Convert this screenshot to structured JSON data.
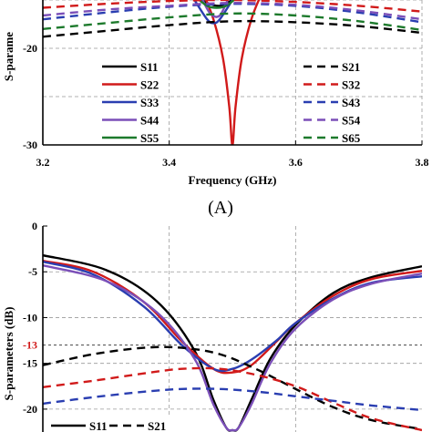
{
  "chart_data": [
    {
      "type": "line",
      "panel_label": "(A)",
      "xlabel": "Frequency (GHz)",
      "ylabel": "S-parame",
      "xlim": [
        3.2,
        3.8
      ],
      "ylim": [
        -30,
        -15
      ],
      "x_ticks": [
        "3.2",
        "3.4",
        "3.6",
        "3.8"
      ],
      "y_ticks": [
        "-20",
        "-30"
      ],
      "grid": true,
      "legend_placement": "bottom",
      "series": [
        {
          "name": "S11",
          "color": "#000000",
          "dash": "solid",
          "x": [
            3.44,
            3.46,
            3.48,
            3.5
          ],
          "y": [
            -14.5,
            -15.3,
            -15.6,
            -15
          ]
        },
        {
          "name": "S22",
          "color": "#d11a1a",
          "dash": "solid",
          "x": [
            3.455,
            3.47,
            3.485,
            3.495,
            3.5,
            3.505,
            3.515,
            3.53,
            3.545
          ],
          "y": [
            -14.5,
            -17,
            -21,
            -26,
            -30,
            -26,
            -21,
            -17,
            -14.5
          ]
        },
        {
          "name": "S33",
          "color": "#2a3eb1",
          "dash": "solid",
          "x": [
            3.44,
            3.46,
            3.47,
            3.48,
            3.5
          ],
          "y": [
            -15,
            -17,
            -17.4,
            -17,
            -15
          ]
        },
        {
          "name": "S44",
          "color": "#7b4fb8",
          "dash": "solid",
          "x": [
            3.45,
            3.465,
            3.48,
            3.495
          ],
          "y": [
            -14.6,
            -16.4,
            -16.6,
            -14.6
          ]
        },
        {
          "name": "S55",
          "color": "#1d7a2c",
          "dash": "solid",
          "x": [
            3.44,
            3.46,
            3.475,
            3.49,
            3.51
          ],
          "y": [
            -14.6,
            -15.6,
            -15.8,
            -15.6,
            -14.6
          ]
        },
        {
          "name": "S21",
          "color": "#000000",
          "dash": "dashed",
          "x": [
            3.2,
            3.3,
            3.4,
            3.5,
            3.6,
            3.7,
            3.8
          ],
          "y": [
            -18.8,
            -18.2,
            -17.6,
            -17.2,
            -17.3,
            -17.7,
            -18.4
          ]
        },
        {
          "name": "S32",
          "color": "#d11a1a",
          "dash": "dashed",
          "x": [
            3.2,
            3.3,
            3.4,
            3.5,
            3.6,
            3.7,
            3.8
          ],
          "y": [
            -15.8,
            -15.4,
            -15.1,
            -15.0,
            -15.2,
            -15.6,
            -16.2
          ]
        },
        {
          "name": "S43",
          "color": "#2a3eb1",
          "dash": "dashed",
          "x": [
            3.2,
            3.3,
            3.4,
            3.5,
            3.6,
            3.7,
            3.8
          ],
          "y": [
            -17.0,
            -16.3,
            -15.7,
            -15.4,
            -15.6,
            -16.3,
            -17.3
          ]
        },
        {
          "name": "S54",
          "color": "#7b4fb8",
          "dash": "dashed",
          "x": [
            3.2,
            3.3,
            3.4,
            3.5,
            3.6,
            3.7,
            3.8
          ],
          "y": [
            -16.6,
            -16.0,
            -15.6,
            -15.3,
            -15.5,
            -16.1,
            -17.0
          ]
        },
        {
          "name": "S65",
          "color": "#1d7a2c",
          "dash": "dashed",
          "x": [
            3.2,
            3.3,
            3.4,
            3.5,
            3.6,
            3.7,
            3.8
          ],
          "y": [
            -18.0,
            -17.4,
            -16.8,
            -16.4,
            -16.6,
            -17.2,
            -18.1
          ]
        }
      ]
    },
    {
      "type": "line",
      "ylabel": "S-parameters (dB)",
      "xlim": [
        3.2,
        3.8
      ],
      "ylim": [
        -22,
        0
      ],
      "y_ticks": [
        "0",
        "-5",
        "-10",
        "-15",
        "-20"
      ],
      "reference_line": {
        "y": -13,
        "label": "-13",
        "color": "#d11a1a"
      },
      "grid": true,
      "legend_placement": "bottom-left",
      "series": [
        {
          "name": "S11",
          "color": "#000000",
          "dash": "solid",
          "x": [
            3.2,
            3.3,
            3.38,
            3.44,
            3.47,
            3.49,
            3.5,
            3.51,
            3.53,
            3.56,
            3.6,
            3.66,
            3.72,
            3.8
          ],
          "y": [
            -3.2,
            -4.8,
            -8.2,
            -13.6,
            -19,
            -22,
            -22.3,
            -22,
            -19,
            -14.5,
            -10.8,
            -7.3,
            -5.6,
            -4.4
          ]
        },
        {
          "name": "S22",
          "color": "#d11a1a",
          "dash": "solid",
          "x": [
            3.2,
            3.28,
            3.36,
            3.42,
            3.47,
            3.5,
            3.53,
            3.57,
            3.6,
            3.66,
            3.72,
            3.8
          ],
          "y": [
            -3.8,
            -5.0,
            -8.3,
            -12.6,
            -15.6,
            -16.0,
            -15.2,
            -12.6,
            -10.6,
            -7.6,
            -5.8,
            -4.9
          ]
        },
        {
          "name": "S33",
          "color": "#2a3eb1",
          "dash": "solid",
          "x": [
            3.2,
            3.28,
            3.36,
            3.42,
            3.47,
            3.5,
            3.53,
            3.57,
            3.6,
            3.66,
            3.72,
            3.8
          ],
          "y": [
            -3.9,
            -5.3,
            -8.8,
            -13.0,
            -15.6,
            -15.6,
            -14.6,
            -12.5,
            -10.6,
            -7.9,
            -6.2,
            -5.5
          ]
        },
        {
          "name": "S44",
          "color": "#7b4fb8",
          "dash": "solid",
          "x": [
            3.2,
            3.3,
            3.38,
            3.44,
            3.47,
            3.49,
            3.5,
            3.51,
            3.53,
            3.56,
            3.6,
            3.66,
            3.72,
            3.8
          ],
          "y": [
            -4.3,
            -6.0,
            -9.4,
            -14.5,
            -19.5,
            -22,
            -22.3,
            -22,
            -19.5,
            -15,
            -11.2,
            -8.0,
            -6.3,
            -5.2
          ]
        },
        {
          "name": "S21",
          "color": "#000000",
          "dash": "dashed",
          "x": [
            3.2,
            3.28,
            3.36,
            3.42,
            3.48,
            3.54,
            3.6,
            3.66,
            3.72,
            3.8
          ],
          "y": [
            -15.2,
            -14.0,
            -13.3,
            -13.3,
            -14.0,
            -15.7,
            -17.8,
            -19.8,
            -21.2,
            -22.2
          ]
        },
        {
          "name": "S32",
          "color": "#d11a1a",
          "dash": "dashed",
          "x": [
            3.2,
            3.28,
            3.36,
            3.42,
            3.48,
            3.54,
            3.6,
            3.66,
            3.72,
            3.8
          ],
          "y": [
            -17.6,
            -16.9,
            -16.1,
            -15.6,
            -15.6,
            -16.3,
            -17.5,
            -19.3,
            -21.0,
            -22.3
          ]
        },
        {
          "name": "S43",
          "color": "#2a3eb1",
          "dash": "dashed",
          "x": [
            3.2,
            3.28,
            3.36,
            3.42,
            3.48,
            3.54,
            3.6,
            3.66,
            3.72,
            3.8
          ],
          "y": [
            -19.4,
            -18.7,
            -18.1,
            -17.8,
            -17.8,
            -18.1,
            -18.6,
            -19.1,
            -19.6,
            -20.1
          ]
        }
      ],
      "legend_visible": [
        "S11",
        "S21"
      ]
    }
  ]
}
